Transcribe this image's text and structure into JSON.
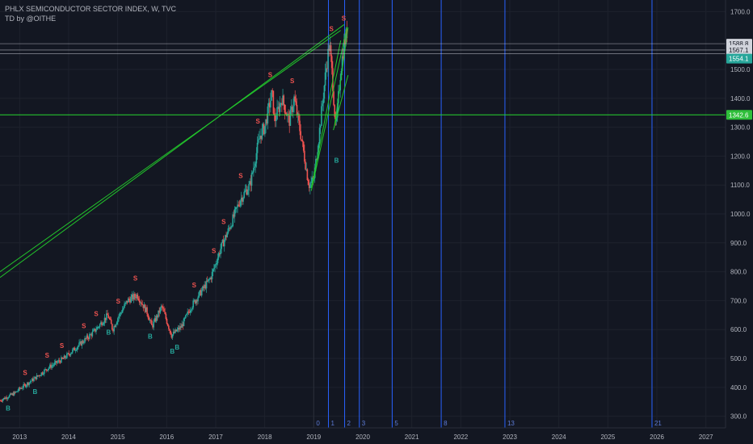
{
  "header": {
    "title": "PHLX SEMICONDUCTOR SECTOR INDEX, W, TVC",
    "subtitle": "TD by @OITHE"
  },
  "colors": {
    "background": "#131722",
    "grid": "#1e222d",
    "axis_text": "#b2b5be",
    "up": "#26a69a",
    "down": "#ef5350",
    "trendline": "#22c52b",
    "horizontal_line": "#26d62e",
    "cycle_line": "#2962ff",
    "badge_teal": "#26a69a",
    "badge_green": "#2fbf3a",
    "level_line": "#d1d4dc"
  },
  "chart_data": {
    "type": "candlestick",
    "title": "PHLX SEMICONDUCTOR SECTOR INDEX, W, TVC",
    "ylim": [
      260,
      1740
    ],
    "y_ticks": [
      300,
      400,
      500,
      600,
      700,
      800,
      900,
      1000,
      1100,
      1200,
      1300,
      1400,
      1500,
      1700
    ],
    "y_tick_labels": [
      "300.0",
      "400.0",
      "500.0",
      "600.0",
      "700.0",
      "800.0",
      "900.0",
      "1000.0",
      "1100.0",
      "1200.0",
      "1300.0",
      "1400.0",
      "1500.0",
      "1700.0"
    ],
    "x_ticks": [
      2013,
      2014,
      2015,
      2016,
      2017,
      2018,
      2019,
      2020,
      2021,
      2022,
      2023,
      2024,
      2025,
      2026,
      2027
    ],
    "xlim": [
      2012.6,
      2027.4
    ],
    "price_path": [
      [
        2012.6,
        355
      ],
      [
        2012.9,
        380
      ],
      [
        2013.0,
        395
      ],
      [
        2013.3,
        430
      ],
      [
        2013.6,
        470
      ],
      [
        2013.9,
        500
      ],
      [
        2014.2,
        545
      ],
      [
        2014.5,
        590
      ],
      [
        2014.8,
        650
      ],
      [
        2014.9,
        600
      ],
      [
        2015.0,
        640
      ],
      [
        2015.2,
        700
      ],
      [
        2015.4,
        720
      ],
      [
        2015.6,
        660
      ],
      [
        2015.7,
        610
      ],
      [
        2015.9,
        680
      ],
      [
        2016.1,
        580
      ],
      [
        2016.3,
        610
      ],
      [
        2016.5,
        680
      ],
      [
        2016.7,
        730
      ],
      [
        2016.9,
        780
      ],
      [
        2017.1,
        880
      ],
      [
        2017.3,
        960
      ],
      [
        2017.5,
        1050
      ],
      [
        2017.7,
        1100
      ],
      [
        2017.9,
        1270
      ],
      [
        2018.0,
        1300
      ],
      [
        2018.15,
        1420
      ],
      [
        2018.2,
        1320
      ],
      [
        2018.35,
        1400
      ],
      [
        2018.5,
        1320
      ],
      [
        2018.6,
        1400
      ],
      [
        2018.75,
        1260
      ],
      [
        2018.9,
        1100
      ],
      [
        2019.0,
        1120
      ],
      [
        2019.1,
        1260
      ],
      [
        2019.25,
        1500
      ],
      [
        2019.32,
        1590
      ],
      [
        2019.38,
        1470
      ],
      [
        2019.45,
        1290
      ],
      [
        2019.55,
        1500
      ],
      [
        2019.62,
        1590
      ],
      [
        2019.68,
        1630
      ]
    ],
    "horizontal_levels": [
      {
        "value": 1588.8,
        "label": "1588.8",
        "style": "level"
      },
      {
        "value": 1567.1,
        "label": "1567.1",
        "style": "level"
      },
      {
        "value": 1554.1,
        "label": "1554.1",
        "style": "teal"
      },
      {
        "value": 1342.6,
        "label": "1342.6",
        "style": "green"
      }
    ],
    "trendlines": [
      {
        "from": [
          2012.6,
          780
        ],
        "to": [
          2019.62,
          1655
        ]
      },
      {
        "from": [
          2012.6,
          800
        ],
        "to": [
          2019.55,
          1635
        ]
      },
      {
        "from": [
          2018.95,
          1080
        ],
        "to": [
          2019.68,
          1648
        ]
      },
      {
        "from": [
          2018.95,
          1090
        ],
        "to": [
          2019.55,
          1600
        ]
      },
      {
        "from": [
          2019.4,
          1290
        ],
        "to": [
          2019.7,
          1480
        ]
      },
      {
        "from": [
          2019.42,
          1300
        ],
        "to": [
          2019.7,
          1645
        ]
      }
    ],
    "cycle_lines": [
      {
        "x": 2019.0,
        "label": "0",
        "color": "#2a2e39"
      },
      {
        "x": 2019.3,
        "label": "1",
        "color": "#2962ff"
      },
      {
        "x": 2019.63,
        "label": "2",
        "color": "#2962ff"
      },
      {
        "x": 2019.93,
        "label": "3",
        "color": "#2962ff"
      },
      {
        "x": 2020.6,
        "label": "5",
        "color": "#2962ff"
      },
      {
        "x": 2021.6,
        "label": "8",
        "color": "#2962ff"
      },
      {
        "x": 2022.9,
        "label": "13",
        "color": "#2962ff"
      },
      {
        "x": 2025.9,
        "label": "21",
        "color": "#2962ff"
      }
    ],
    "td_sell_marks": [
      2013.1,
      2013.55,
      2013.85,
      2014.3,
      2014.55,
      2015.0,
      2015.35,
      2016.55,
      2016.95,
      2017.15,
      2017.5,
      2017.85,
      2018.1,
      2018.55,
      2019.35,
      2019.6
    ],
    "td_buy_marks": [
      2012.75,
      2013.3,
      2014.8,
      2015.65,
      2016.1,
      2016.2,
      2019.45
    ]
  }
}
